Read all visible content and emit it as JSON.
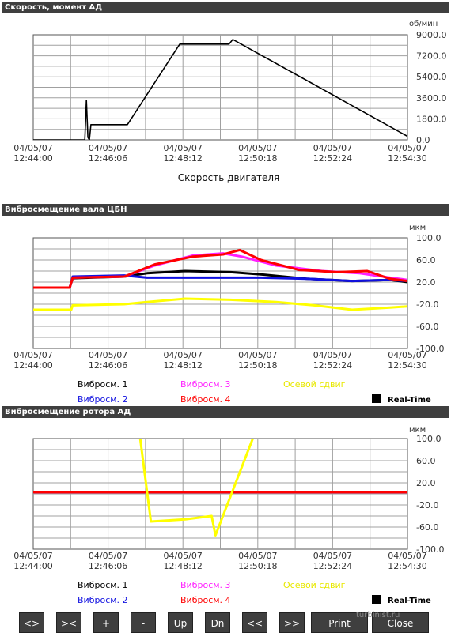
{
  "x_ticks": [
    "04/05/07\n12:44:00",
    "04/05/07\n12:46:06",
    "04/05/07\n12:48:12",
    "04/05/07\n12:50:18",
    "04/05/07\n12:52:24",
    "04/05/07\n12:54:30"
  ],
  "panels": [
    {
      "title": "Скорость, момент АД",
      "unit": "об/мин",
      "xlabel": "Скорость двигателя"
    },
    {
      "title": "Вибросмещение вала ЦБН",
      "unit": "мкм",
      "legend": [
        "Вибросм. 1",
        "Вибросм. 3",
        "Осевой сдвиг",
        "Вибросм. 2",
        "Вибросм. 4"
      ],
      "realtime": "Real-Time"
    },
    {
      "title": "Вибросмещение ротора АД",
      "unit": "мкм",
      "legend": [
        "Вибросм. 1",
        "Вибросм. 3",
        "Осевой сдвиг",
        "Вибросм. 2",
        "Вибросм. 4"
      ],
      "realtime": "Real-Time"
    }
  ],
  "colors": {
    "vib1": "#000000",
    "vib2": "#1010e0",
    "vib3": "#ff20ff",
    "vib4": "#ff0000",
    "axial": "#ffff00",
    "title_bar": "#3f3f3f",
    "speed": "#000000",
    "grid": "#a0a0a0"
  },
  "chart_data": [
    {
      "type": "line",
      "title": "Скорость, момент АД",
      "xlabel": "Скорость двигателя",
      "ylabel": "об/мин",
      "x_ticks": [
        "04/05/07 12:44:00",
        "04/05/07 12:46:06",
        "04/05/07 12:48:12",
        "04/05/07 12:50:18",
        "04/05/07 12:52:24",
        "04/05/07 12:54:30"
      ],
      "y_ticks": [
        "9000.0",
        "7200.0",
        "5400.0",
        "3600.0",
        "1800.0",
        "0.0"
      ],
      "ylim": [
        0,
        9000
      ],
      "series": [
        {
          "values": [
            [
              0,
              0
            ],
            [
              68,
              0
            ],
            [
              70,
              3400
            ],
            [
              72,
              200
            ],
            [
              74,
              0
            ],
            [
              76,
              1300
            ],
            [
              124,
              1300
            ],
            [
              193,
              8200
            ],
            [
              258,
              8200
            ],
            [
              263,
              8600
            ],
            [
              493,
              300
            ]
          ]
        }
      ]
    },
    {
      "type": "line",
      "title": "Вибросмещение вала ЦБН",
      "ylabel": "мкм",
      "x_ticks": [
        "04/05/07 12:44:00",
        "04/05/07 12:46:06",
        "04/05/07 12:48:12",
        "04/05/07 12:50:18",
        "04/05/07 12:52:24",
        "04/05/07 12:54:30"
      ],
      "y_ticks": [
        "100.0",
        "60.0",
        "20.0",
        "-20.0",
        "-60.0",
        "-100.0"
      ],
      "ylim": [
        -100,
        100
      ],
      "series": [
        {
          "name": "Вибросм. 1",
          "values": [
            [
              0,
              10
            ],
            [
              48,
              10
            ],
            [
              52,
              27
            ],
            [
              120,
              30
            ],
            [
              150,
              36
            ],
            [
              200,
              40
            ],
            [
              260,
              38
            ],
            [
              300,
              34
            ],
            [
              360,
              26
            ],
            [
              420,
              22
            ],
            [
              470,
              24
            ],
            [
              493,
              20
            ]
          ]
        },
        {
          "name": "Вибросм. 2",
          "values": [
            [
              0,
              10
            ],
            [
              48,
              10
            ],
            [
              52,
              30
            ],
            [
              120,
              32
            ],
            [
              150,
              28
            ],
            [
              200,
              28
            ],
            [
              260,
              28
            ],
            [
              300,
              28
            ],
            [
              360,
              26
            ],
            [
              420,
              22
            ],
            [
              470,
              24
            ],
            [
              493,
              22
            ]
          ]
        },
        {
          "name": "Вибросм. 3",
          "values": [
            [
              0,
              10
            ],
            [
              48,
              10
            ],
            [
              52,
              28
            ],
            [
              120,
              30
            ],
            [
              160,
              50
            ],
            [
              210,
              68
            ],
            [
              250,
              72
            ],
            [
              275,
              66
            ],
            [
              320,
              50
            ],
            [
              380,
              40
            ],
            [
              430,
              36
            ],
            [
              470,
              28
            ],
            [
              493,
              24
            ]
          ]
        },
        {
          "name": "Вибросм. 4",
          "values": [
            [
              0,
              10
            ],
            [
              48,
              10
            ],
            [
              52,
              28
            ],
            [
              120,
              30
            ],
            [
              160,
              52
            ],
            [
              210,
              66
            ],
            [
              250,
              70
            ],
            [
              272,
              78
            ],
            [
              300,
              60
            ],
            [
              350,
              42
            ],
            [
              400,
              38
            ],
            [
              440,
              40
            ],
            [
              470,
              26
            ],
            [
              493,
              22
            ]
          ]
        },
        {
          "name": "Осевой сдвиг",
          "values": [
            [
              0,
              -30
            ],
            [
              50,
              -30
            ],
            [
              52,
              -22
            ],
            [
              120,
              -20
            ],
            [
              150,
              -16
            ],
            [
              200,
              -10
            ],
            [
              260,
              -12
            ],
            [
              320,
              -16
            ],
            [
              370,
              -22
            ],
            [
              420,
              -30
            ],
            [
              470,
              -26
            ],
            [
              493,
              -24
            ]
          ]
        }
      ]
    },
    {
      "type": "line",
      "title": "Вибросмещение ротора АД",
      "ylabel": "мкм",
      "x_ticks": [
        "04/05/07 12:44:00",
        "04/05/07 12:46:06",
        "04/05/07 12:48:12",
        "04/05/07 12:50:18",
        "04/05/07 12:52:24",
        "04/05/07 12:54:30"
      ],
      "y_ticks": [
        "100.0",
        "60.0",
        "20.0",
        "-20.0",
        "-60.0",
        "-100.0"
      ],
      "ylim": [
        -100,
        100
      ],
      "series": [
        {
          "name": "Вибросм. 1",
          "values": [
            [
              0,
              3
            ],
            [
              493,
              3
            ]
          ]
        },
        {
          "name": "Вибросм. 2",
          "values": [
            [
              0,
              3
            ],
            [
              493,
              3
            ]
          ]
        },
        {
          "name": "Вибросм. 3",
          "values": [
            [
              0,
              3
            ],
            [
              493,
              3
            ]
          ]
        },
        {
          "name": "Вибросм. 4",
          "values": [
            [
              0,
              3
            ],
            [
              493,
              3
            ]
          ]
        },
        {
          "name": "Осевой сдвиг",
          "values": [
            [
              140,
              110
            ],
            [
              155,
              -50
            ],
            [
              200,
              -46
            ],
            [
              235,
              -40
            ],
            [
              240,
              -75
            ],
            [
              292,
              110
            ]
          ]
        }
      ]
    }
  ],
  "buttons": [
    "<>",
    "><",
    "+",
    "-",
    "Up",
    "Dn",
    "<<",
    ">>",
    "Print",
    "Close"
  ],
  "watermark": "turbinist.ru"
}
